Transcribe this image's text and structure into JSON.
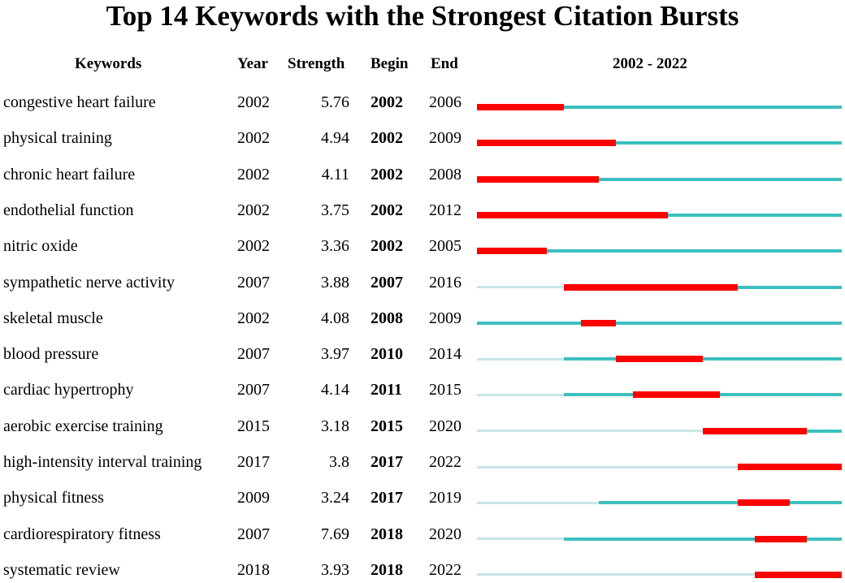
{
  "chart_data": {
    "type": "citation-burst",
    "title": "Top 14 Keywords with the Strongest Citation Bursts",
    "columns": {
      "keywords": "Keywords",
      "year": "Year",
      "strength": "Strength",
      "begin": "Begin",
      "end": "End",
      "range": "2002 - 2022"
    },
    "range_start": 2002,
    "range_end": 2022,
    "colors": {
      "burst": "#ff0000",
      "active": "#3dbfbf",
      "inactive": "#c8e6e6"
    },
    "rows": [
      {
        "keyword": "congestive heart failure",
        "year": "2002",
        "strength": "5.76",
        "begin": "2002",
        "end": "2006"
      },
      {
        "keyword": "physical training",
        "year": "2002",
        "strength": "4.94",
        "begin": "2002",
        "end": "2009"
      },
      {
        "keyword": "chronic heart failure",
        "year": "2002",
        "strength": "4.11",
        "begin": "2002",
        "end": "2008"
      },
      {
        "keyword": "endothelial function",
        "year": "2002",
        "strength": "3.75",
        "begin": "2002",
        "end": "2012"
      },
      {
        "keyword": "nitric oxide",
        "year": "2002",
        "strength": "3.36",
        "begin": "2002",
        "end": "2005"
      },
      {
        "keyword": "sympathetic nerve activity",
        "year": "2007",
        "strength": "3.88",
        "begin": "2007",
        "end": "2016"
      },
      {
        "keyword": "skeletal muscle",
        "year": "2002",
        "strength": "4.08",
        "begin": "2008",
        "end": "2009"
      },
      {
        "keyword": "blood pressure",
        "year": "2007",
        "strength": "3.97",
        "begin": "2010",
        "end": "2014"
      },
      {
        "keyword": "cardiac hypertrophy",
        "year": "2007",
        "strength": "4.14",
        "begin": "2011",
        "end": "2015"
      },
      {
        "keyword": "aerobic exercise training",
        "year": "2015",
        "strength": "3.18",
        "begin": "2015",
        "end": "2020"
      },
      {
        "keyword": "high-intensity interval training",
        "year": "2017",
        "strength": "3.8",
        "begin": "2017",
        "end": "2022"
      },
      {
        "keyword": "physical fitness",
        "year": "2009",
        "strength": "3.24",
        "begin": "2017",
        "end": "2019"
      },
      {
        "keyword": "cardiorespiratory fitness",
        "year": "2007",
        "strength": "7.69",
        "begin": "2018",
        "end": "2020"
      },
      {
        "keyword": "systematic review",
        "year": "2018",
        "strength": "3.93",
        "begin": "2018",
        "end": "2022"
      }
    ]
  }
}
